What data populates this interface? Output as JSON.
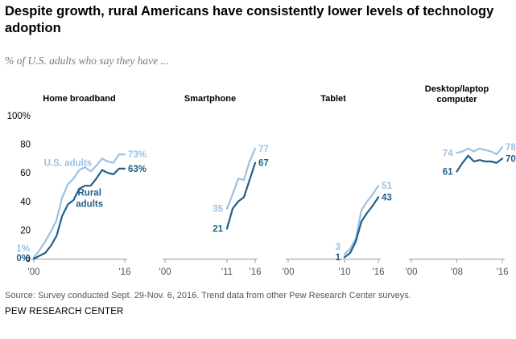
{
  "title": "Despite growth, rural Americans have consistently lower levels of technology adoption",
  "subtitle": "% of U.S. adults who say they have ...",
  "source": "Source: Survey conducted Sept. 29-Nov. 6, 2016.  Trend data from other Pew Research Center surveys.",
  "org": "PEW RESEARCH CENTER",
  "colors": {
    "us": "#9cc1e0",
    "rural": "#1f5f8b",
    "axis": "#9a9a9a"
  },
  "chart_data": {
    "type": "line",
    "ylim": [
      0,
      100
    ],
    "yticks": [
      0,
      20,
      40,
      60,
      80,
      100
    ],
    "ytick_labels": [
      "0",
      "20",
      "40",
      "60",
      "80",
      "100%"
    ],
    "xlim": [
      2000,
      2016
    ],
    "xtick_labels": [
      "'00",
      "'16"
    ],
    "panels": [
      {
        "title": "Home broadband",
        "xtick_labels": [
          "'00",
          "'16"
        ],
        "series": [
          {
            "name": "U.S. adults",
            "x": [
              2000,
              2001,
              2002,
              2003,
              2004,
              2005,
              2006,
              2007,
              2008,
              2009,
              2010,
              2011,
              2012,
              2013,
              2014,
              2015,
              2016
            ],
            "values": [
              1,
              6,
              12,
              19,
              27,
              43,
              52,
              56,
              62,
              64,
              61,
              65,
              70,
              68,
              67,
              73,
              73
            ]
          },
          {
            "name": "Rural adults",
            "x": [
              2000,
              2001,
              2002,
              2003,
              2004,
              2005,
              2006,
              2007,
              2008,
              2009,
              2010,
              2011,
              2012,
              2013,
              2014,
              2015,
              2016
            ],
            "values": [
              0,
              2,
              4,
              9,
              16,
              30,
              38,
              41,
              49,
              51,
              51,
              56,
              62,
              60,
              59,
              63,
              63
            ]
          }
        ],
        "labels": {
          "us_start": "1%",
          "us_end": "73%",
          "rural_start": "0%",
          "rural_end": "63%",
          "us_name": "U.S. adults",
          "rural_name": [
            "Rural",
            "adults"
          ]
        }
      },
      {
        "title": "Smartphone",
        "xtick_labels": [
          "'00",
          "'11",
          "'16"
        ],
        "series": [
          {
            "name": "U.S. adults",
            "x": [
              2011,
              2012,
              2013,
              2014,
              2015,
              2016
            ],
            "values": [
              35,
              45,
              56,
              55,
              68,
              77
            ]
          },
          {
            "name": "Rural adults",
            "x": [
              2011,
              2012,
              2013,
              2014,
              2015,
              2016
            ],
            "values": [
              21,
              35,
              40,
              43,
              55,
              67
            ]
          }
        ],
        "labels": {
          "us_start": "35",
          "us_end": "77",
          "rural_start": "21",
          "rural_end": "67"
        }
      },
      {
        "title": "Tablet",
        "xtick_labels": [
          "'00",
          "'10",
          "'16"
        ],
        "series": [
          {
            "name": "U.S. adults",
            "x": [
              2010,
              2011,
              2012,
              2013,
              2014,
              2015,
              2016
            ],
            "values": [
              3,
              7,
              14,
              34,
              40,
              45,
              51
            ]
          },
          {
            "name": "Rural adults",
            "x": [
              2010,
              2011,
              2012,
              2013,
              2014,
              2015,
              2016
            ],
            "values": [
              1,
              4,
              12,
              26,
              32,
              37,
              43
            ]
          }
        ],
        "labels": {
          "us_start": "3",
          "us_end": "51",
          "rural_start": "1",
          "rural_end": "43"
        }
      },
      {
        "title": "Desktop/laptop computer",
        "title_lines": [
          "Desktop/laptop",
          "computer"
        ],
        "xtick_labels": [
          "'00",
          "'08",
          "'16"
        ],
        "series": [
          {
            "name": "U.S. adults",
            "x": [
              2008,
              2009,
              2010,
              2011,
              2012,
              2013,
              2014,
              2015,
              2016
            ],
            "values": [
              74,
              75,
              77,
              75,
              77,
              76,
              75,
              73,
              78
            ]
          },
          {
            "name": "Rural adults",
            "x": [
              2008,
              2009,
              2010,
              2011,
              2012,
              2013,
              2014,
              2015,
              2016
            ],
            "values": [
              61,
              67,
              72,
              68,
              69,
              68,
              68,
              67,
              70
            ]
          }
        ],
        "labels": {
          "us_start": "74",
          "us_end": "78",
          "rural_start": "61",
          "rural_end": "70"
        }
      }
    ]
  }
}
